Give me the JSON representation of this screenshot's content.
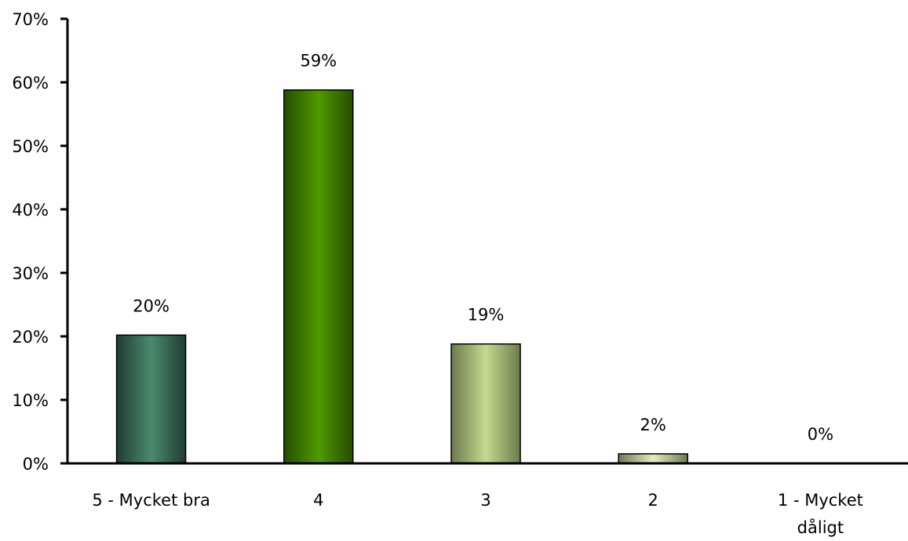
{
  "chart_data": {
    "type": "bar",
    "categories": [
      [
        "5 - Mycket bra"
      ],
      [
        "4"
      ],
      [
        "3"
      ],
      [
        "2"
      ],
      [
        "1 - Mycket",
        "dåligt"
      ]
    ],
    "values": [
      20.2,
      58.8,
      18.8,
      1.5,
      0
    ],
    "data_labels": [
      "20%",
      "59%",
      "19%",
      "2%",
      "0%"
    ],
    "y_ticks": [
      "0%",
      "10%",
      "20%",
      "30%",
      "40%",
      "50%",
      "60%",
      "70%"
    ],
    "ylim": [
      0,
      70
    ],
    "grid": false,
    "legend": "none",
    "bar_colors": [
      {
        "edge": "#1f3d31",
        "mid": "#4a8a6e"
      },
      {
        "edge": "#254d00",
        "mid": "#4f9a00"
      },
      {
        "edge": "#6d7b4d",
        "mid": "#c6d98e"
      },
      {
        "edge": "#6f7a55",
        "mid": "#e4ecbe"
      },
      {
        "edge": "#888888",
        "mid": "#cccccc"
      }
    ]
  }
}
